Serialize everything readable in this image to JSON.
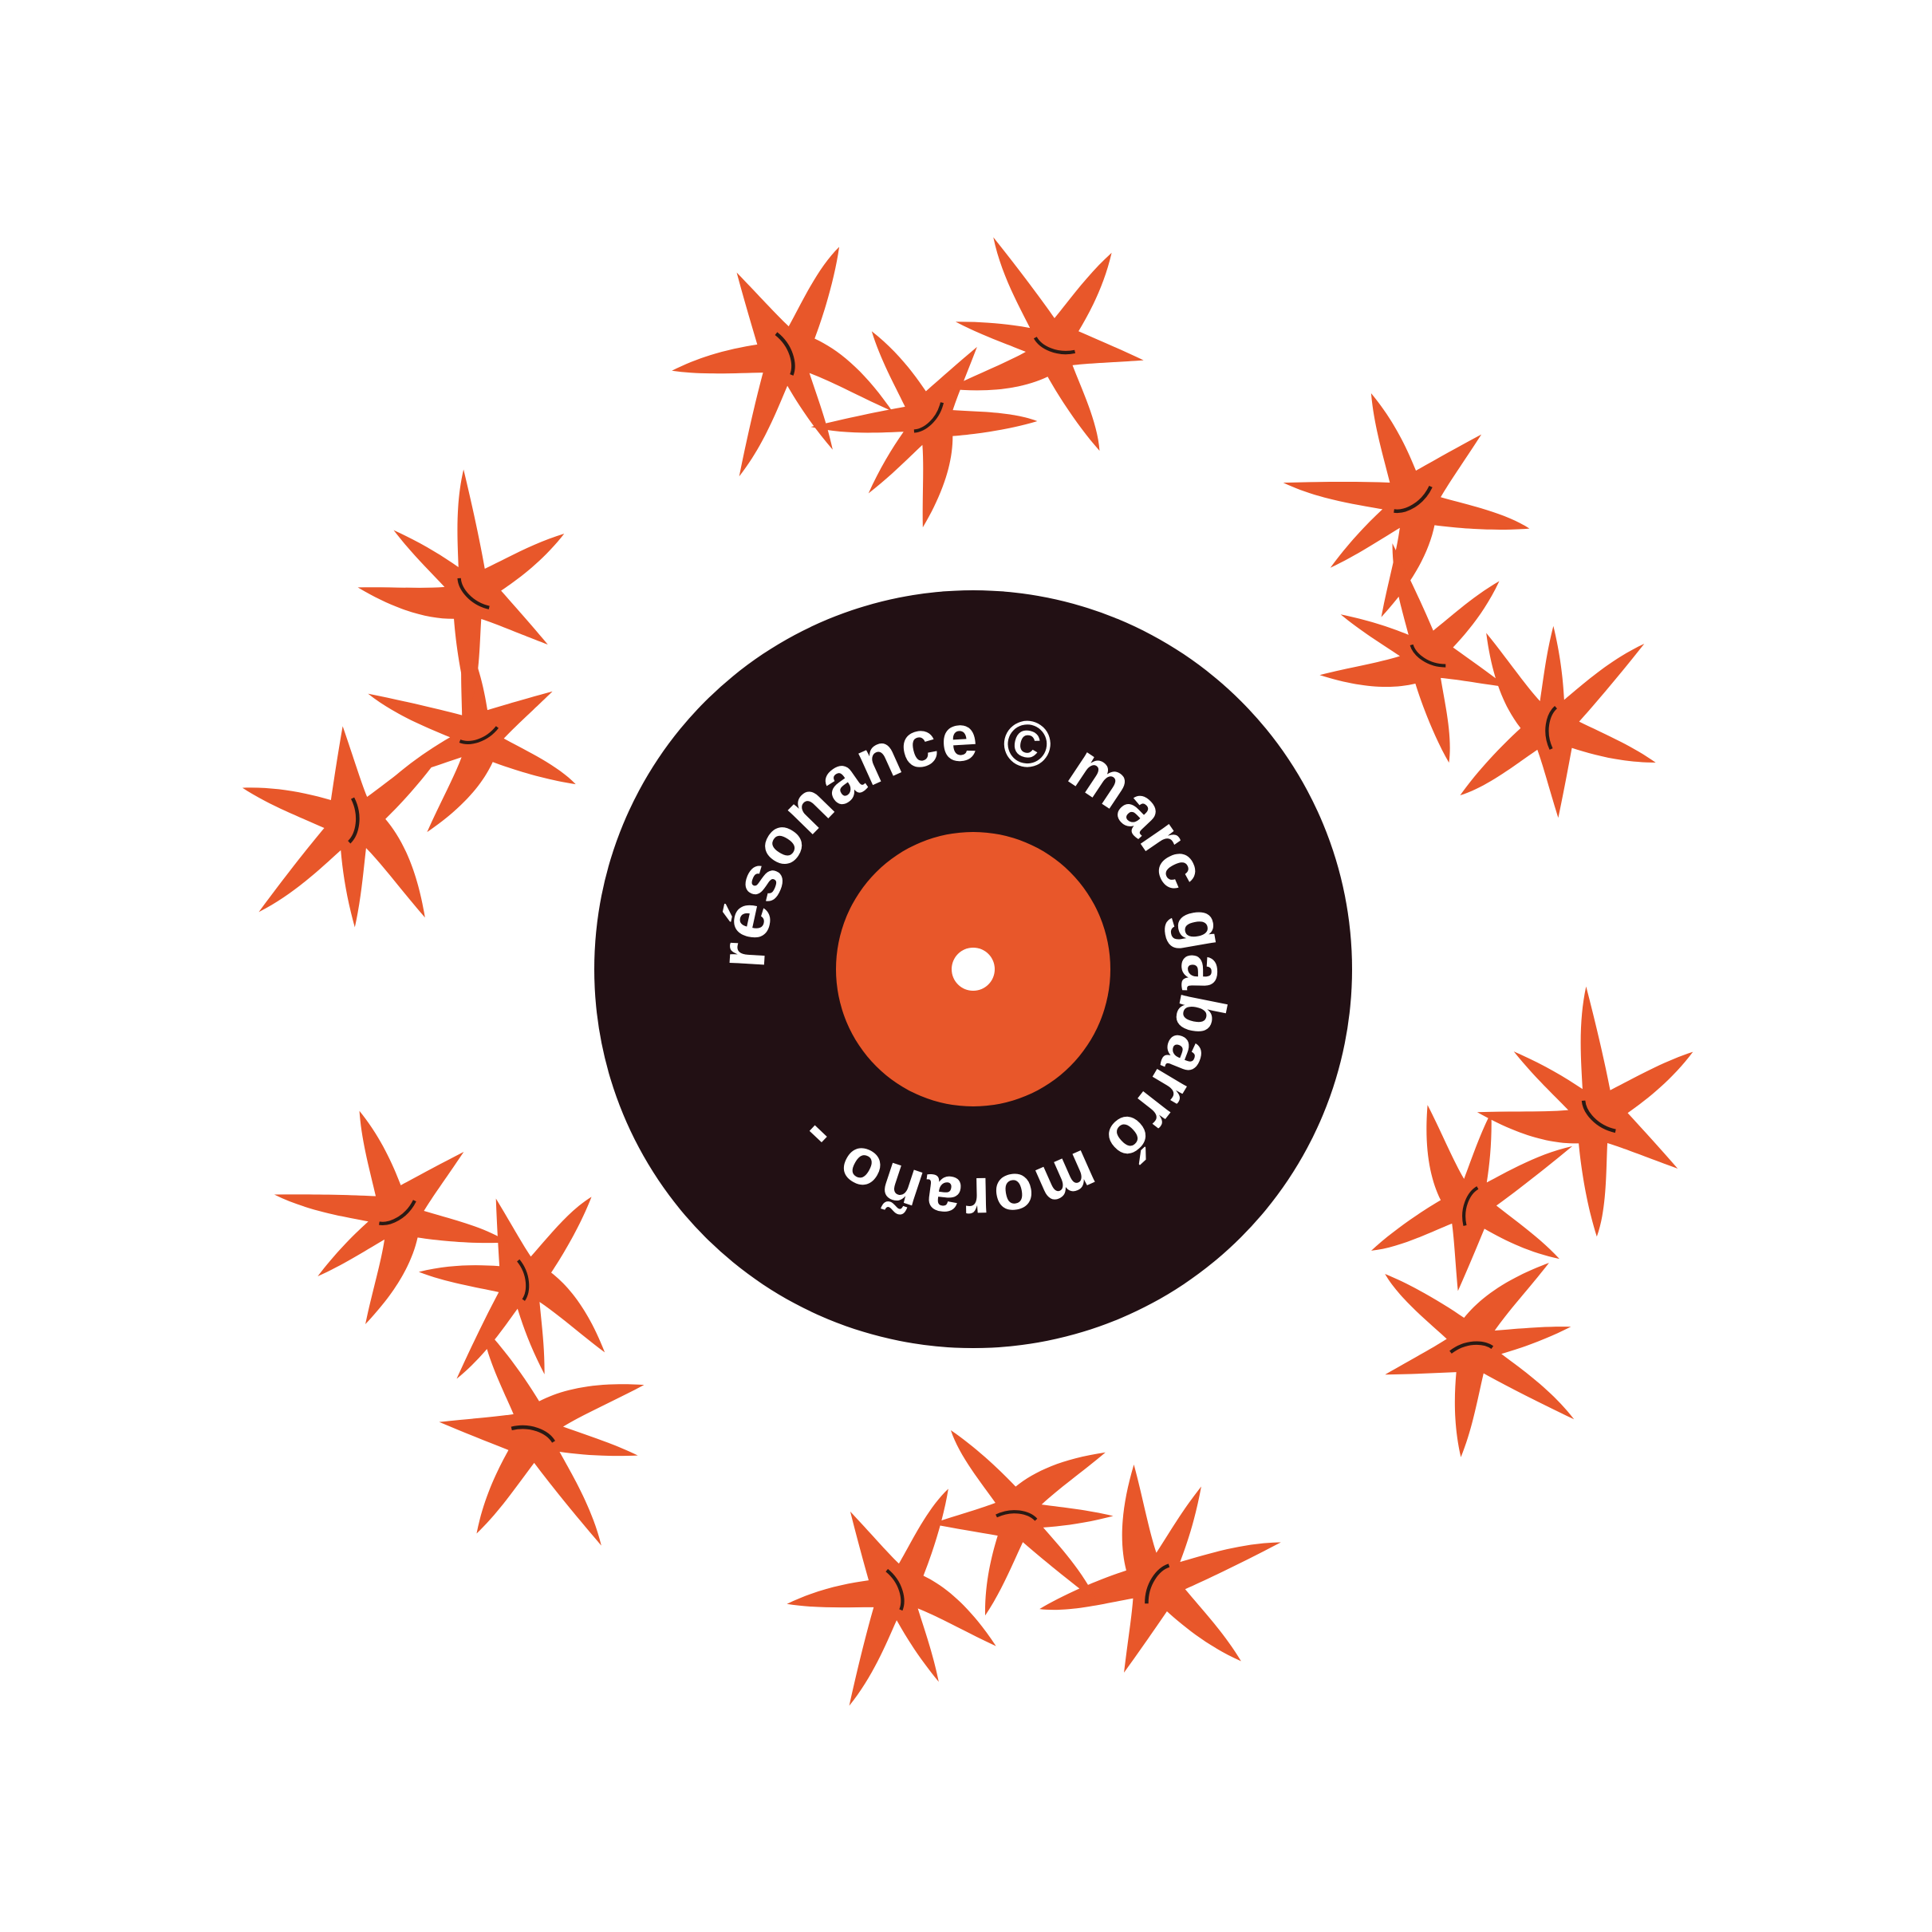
{
  "artwork": {
    "label_text": "résonance © marc gabarró moraño - ",
    "colors": {
      "background": "#ffffff",
      "record": "#221014",
      "label": "#e8572a",
      "spindle_hole": "#ffffff",
      "figure_fill": "#e8572a",
      "figure_outline": "#2a1a14",
      "text": "#ffffff"
    },
    "figure_clusters": 6,
    "figures_per_cluster": 3
  }
}
